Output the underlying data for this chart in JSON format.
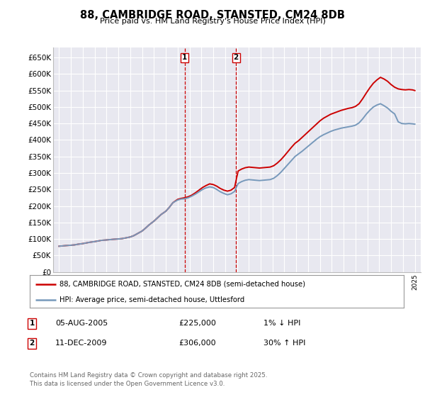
{
  "title": "88, CAMBRIDGE ROAD, STANSTED, CM24 8DB",
  "subtitle": "Price paid vs. HM Land Registry's House Price Index (HPI)",
  "ylim": [
    0,
    680000
  ],
  "yticks": [
    0,
    50000,
    100000,
    150000,
    200000,
    250000,
    300000,
    350000,
    400000,
    450000,
    500000,
    550000,
    600000,
    650000
  ],
  "ytick_labels": [
    "£0",
    "£50K",
    "£100K",
    "£150K",
    "£200K",
    "£250K",
    "£300K",
    "£350K",
    "£400K",
    "£450K",
    "£500K",
    "£550K",
    "£600K",
    "£650K"
  ],
  "xlim_start": 1994.5,
  "xlim_end": 2025.5,
  "background_color": "#ffffff",
  "plot_bg_color": "#e8e8f0",
  "grid_color": "#ffffff",
  "red_color": "#cc0000",
  "blue_color": "#7799bb",
  "marker1_year": 2005.6,
  "marker2_year": 2009.92,
  "transaction1": {
    "label": "1",
    "date": "05-AUG-2005",
    "price": "£225,000",
    "hpi": "1% ↓ HPI"
  },
  "transaction2": {
    "label": "2",
    "date": "11-DEC-2009",
    "price": "£306,000",
    "hpi": "30% ↑ HPI"
  },
  "legend_line1": "88, CAMBRIDGE ROAD, STANSTED, CM24 8DB (semi-detached house)",
  "legend_line2": "HPI: Average price, semi-detached house, Uttlesford",
  "footer": "Contains HM Land Registry data © Crown copyright and database right 2025.\nThis data is licensed under the Open Government Licence v3.0.",
  "red_x": [
    1995.0,
    1995.3,
    1995.6,
    1996.0,
    1996.3,
    1996.6,
    1997.0,
    1997.3,
    1997.6,
    1998.0,
    1998.3,
    1998.6,
    1999.0,
    1999.3,
    1999.6,
    2000.0,
    2000.3,
    2000.6,
    2001.0,
    2001.3,
    2001.6,
    2002.0,
    2002.3,
    2002.6,
    2003.0,
    2003.3,
    2003.6,
    2004.0,
    2004.3,
    2004.6,
    2005.0,
    2005.3,
    2005.6,
    2005.9,
    2006.2,
    2006.5,
    2006.8,
    2007.1,
    2007.4,
    2007.7,
    2008.0,
    2008.3,
    2008.6,
    2008.9,
    2009.2,
    2009.5,
    2009.8,
    2010.1,
    2010.4,
    2010.7,
    2011.0,
    2011.3,
    2011.6,
    2011.9,
    2012.2,
    2012.5,
    2012.8,
    2013.1,
    2013.4,
    2013.7,
    2014.0,
    2014.3,
    2014.6,
    2014.9,
    2015.2,
    2015.5,
    2015.8,
    2016.1,
    2016.4,
    2016.7,
    2017.0,
    2017.3,
    2017.6,
    2017.9,
    2018.2,
    2018.5,
    2018.8,
    2019.1,
    2019.4,
    2019.7,
    2020.0,
    2020.3,
    2020.6,
    2020.9,
    2021.2,
    2021.5,
    2021.8,
    2022.1,
    2022.4,
    2022.7,
    2023.0,
    2023.3,
    2023.6,
    2023.9,
    2024.2,
    2024.5,
    2024.8,
    2025.0
  ],
  "red_y": [
    78000,
    79000,
    80000,
    81000,
    82000,
    84000,
    86000,
    88000,
    90000,
    92000,
    94000,
    96000,
    97000,
    98000,
    99000,
    100000,
    101000,
    103000,
    106000,
    110000,
    116000,
    124000,
    133000,
    143000,
    154000,
    164000,
    174000,
    184000,
    196000,
    210000,
    220000,
    223000,
    225000,
    228000,
    233000,
    240000,
    248000,
    256000,
    262000,
    267000,
    265000,
    260000,
    253000,
    248000,
    245000,
    248000,
    256000,
    306000,
    312000,
    316000,
    318000,
    317000,
    316000,
    315000,
    316000,
    317000,
    318000,
    322000,
    330000,
    340000,
    352000,
    365000,
    378000,
    390000,
    398000,
    408000,
    418000,
    428000,
    438000,
    448000,
    458000,
    466000,
    472000,
    478000,
    482000,
    486000,
    490000,
    493000,
    496000,
    498000,
    502000,
    510000,
    525000,
    542000,
    558000,
    572000,
    582000,
    590000,
    585000,
    578000,
    568000,
    560000,
    555000,
    553000,
    552000,
    553000,
    552000,
    550000
  ],
  "blue_x": [
    1995.0,
    1995.3,
    1995.6,
    1996.0,
    1996.3,
    1996.6,
    1997.0,
    1997.3,
    1997.6,
    1998.0,
    1998.3,
    1998.6,
    1999.0,
    1999.3,
    1999.6,
    2000.0,
    2000.3,
    2000.6,
    2001.0,
    2001.3,
    2001.6,
    2002.0,
    2002.3,
    2002.6,
    2003.0,
    2003.3,
    2003.6,
    2004.0,
    2004.3,
    2004.6,
    2005.0,
    2005.3,
    2005.6,
    2005.9,
    2006.2,
    2006.5,
    2006.8,
    2007.1,
    2007.4,
    2007.7,
    2008.0,
    2008.3,
    2008.6,
    2008.9,
    2009.2,
    2009.5,
    2009.8,
    2010.1,
    2010.4,
    2010.7,
    2011.0,
    2011.3,
    2011.6,
    2011.9,
    2012.2,
    2012.5,
    2012.8,
    2013.1,
    2013.4,
    2013.7,
    2014.0,
    2014.3,
    2014.6,
    2014.9,
    2015.2,
    2015.5,
    2015.8,
    2016.1,
    2016.4,
    2016.7,
    2017.0,
    2017.3,
    2017.6,
    2017.9,
    2018.2,
    2018.5,
    2018.8,
    2019.1,
    2019.4,
    2019.7,
    2020.0,
    2020.3,
    2020.6,
    2020.9,
    2021.2,
    2021.5,
    2021.8,
    2022.1,
    2022.4,
    2022.7,
    2023.0,
    2023.3,
    2023.6,
    2023.9,
    2024.2,
    2024.5,
    2024.8,
    2025.0
  ],
  "blue_y": [
    78000,
    79000,
    80000,
    81000,
    82000,
    84000,
    86000,
    88000,
    90000,
    92000,
    94000,
    96000,
    97000,
    98000,
    99000,
    100000,
    101000,
    103000,
    106000,
    110000,
    116000,
    124000,
    133000,
    143000,
    154000,
    164000,
    174000,
    184000,
    196000,
    210000,
    218000,
    221000,
    222000,
    225000,
    230000,
    236000,
    243000,
    250000,
    255000,
    258000,
    256000,
    250000,
    243000,
    238000,
    234000,
    237000,
    244000,
    268000,
    274000,
    278000,
    280000,
    279000,
    278000,
    277000,
    278000,
    279000,
    280000,
    284000,
    292000,
    302000,
    314000,
    326000,
    338000,
    350000,
    358000,
    366000,
    375000,
    384000,
    393000,
    402000,
    410000,
    416000,
    421000,
    426000,
    430000,
    433000,
    436000,
    438000,
    440000,
    442000,
    445000,
    452000,
    464000,
    478000,
    490000,
    500000,
    506000,
    510000,
    504000,
    497000,
    487000,
    479000,
    455000,
    450000,
    449000,
    450000,
    449000,
    448000
  ]
}
